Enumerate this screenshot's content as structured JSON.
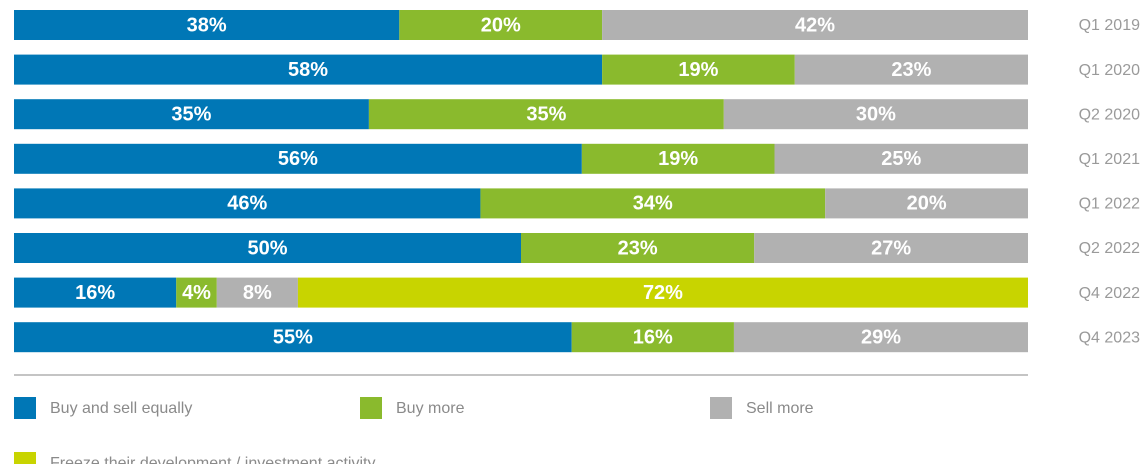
{
  "chart_data": {
    "type": "stacked-bar",
    "orientation": "horizontal",
    "categories": [
      "Q1 2019",
      "Q1 2020",
      "Q2 2020",
      "Q1 2021",
      "Q1 2022",
      "Q2 2022",
      "Q4 2022",
      "Q4 2023"
    ],
    "series": [
      {
        "name": "Buy and sell equally",
        "color": "#0077b6",
        "values": [
          38,
          58,
          35,
          56,
          46,
          50,
          16,
          55
        ],
        "value_labels": [
          "38%",
          "58%",
          "35%",
          "56%",
          "46%",
          "50%",
          "16%",
          "55%"
        ]
      },
      {
        "name": "Buy more",
        "color": "#8aba2d",
        "values": [
          20,
          19,
          35,
          19,
          34,
          23,
          4,
          16
        ],
        "value_labels": [
          "20%",
          "19%",
          "35%",
          "19%",
          "34%",
          "23%",
          "4%",
          "16%"
        ]
      },
      {
        "name": "Sell more",
        "color": "#b1b1b1",
        "values": [
          42,
          23,
          30,
          25,
          20,
          27,
          8,
          29
        ],
        "value_labels": [
          "42%",
          "23%",
          "30%",
          "25%",
          "20%",
          "27%",
          "8%",
          "29%"
        ]
      },
      {
        "name": "Freeze their development / investment activity",
        "color": "#c8d400",
        "values": [
          null,
          null,
          null,
          null,
          null,
          null,
          72,
          null
        ],
        "value_labels": [
          null,
          null,
          null,
          null,
          null,
          null,
          "72%",
          null
        ]
      }
    ]
  }
}
